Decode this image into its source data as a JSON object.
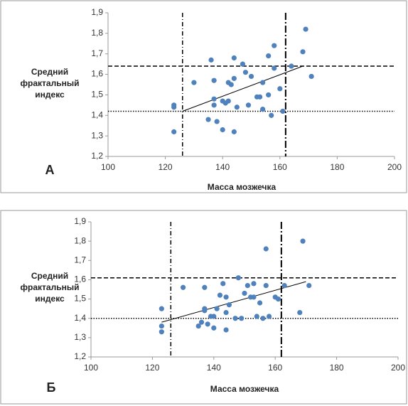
{
  "chart_data": [
    {
      "type": "scatter",
      "panel_label": "А",
      "x_label": "Масса мозжечка",
      "y_label": [
        "Средний",
        "фрактальный",
        "индекс"
      ],
      "xlim": [
        100,
        200
      ],
      "xticks": [
        100,
        120,
        140,
        160,
        180,
        200
      ],
      "ylim": [
        1.2,
        1.9
      ],
      "yticks": [
        {
          "value": 1.2,
          "label": "1,2"
        },
        {
          "value": 1.3,
          "label": "1,3"
        },
        {
          "value": 1.4,
          "label": "1,4"
        },
        {
          "value": 1.5,
          "label": "1,5"
        },
        {
          "value": 1.6,
          "label": "1,6"
        },
        {
          "value": 1.7,
          "label": "1,7"
        },
        {
          "value": 1.8,
          "label": "1,8"
        },
        {
          "value": 1.9,
          "label": "1,9"
        }
      ],
      "color": "#4f81bd",
      "x": [
        123,
        123,
        123,
        130,
        135,
        136,
        137,
        137,
        137,
        138,
        140,
        140,
        141,
        142,
        143,
        144,
        144,
        144,
        145,
        147,
        148,
        149,
        150,
        152,
        153,
        154,
        154,
        156,
        156,
        157,
        158,
        158,
        160,
        161,
        164,
        168,
        169,
        171,
        142
      ],
      "values": [
        1.45,
        1.44,
        1.32,
        1.56,
        1.38,
        1.67,
        1.48,
        1.57,
        1.45,
        1.37,
        1.47,
        1.33,
        1.46,
        1.56,
        1.55,
        1.68,
        1.58,
        1.32,
        1.44,
        1.65,
        1.61,
        1.45,
        1.59,
        1.49,
        1.49,
        1.56,
        1.43,
        1.69,
        1.5,
        1.4,
        1.74,
        1.63,
        1.53,
        1.42,
        1.64,
        1.71,
        1.82,
        1.59,
        1.47
      ],
      "vlines": [
        126,
        162
      ],
      "hlines": [
        1.64,
        1.42
      ],
      "trend": {
        "x": [
          126,
          168
        ],
        "y": [
          1.42,
          1.64
        ]
      }
    },
    {
      "type": "scatter",
      "panel_label": "Б",
      "x_label": "Масса мозжечка",
      "y_label": [
        "Средний",
        "фрактальный",
        "индекс"
      ],
      "xlim": [
        100,
        200
      ],
      "xticks": [
        100,
        120,
        140,
        160,
        180,
        200
      ],
      "ylim": [
        1.2,
        1.9
      ],
      "yticks": [
        {
          "value": 1.2,
          "label": "1,2"
        },
        {
          "value": 1.3,
          "label": "1,3"
        },
        {
          "value": 1.4,
          "label": "1,4"
        },
        {
          "value": 1.5,
          "label": "1,5"
        },
        {
          "value": 1.6,
          "label": "1,6"
        },
        {
          "value": 1.7,
          "label": "1,7"
        },
        {
          "value": 1.8,
          "label": "1,8"
        },
        {
          "value": 1.9,
          "label": "1,9"
        }
      ],
      "color": "#4f81bd",
      "x": [
        123,
        123,
        123,
        130,
        135,
        136,
        137,
        137,
        137,
        138,
        139,
        140,
        140,
        141,
        142,
        143,
        144,
        144,
        144,
        145,
        147,
        148,
        149,
        150,
        151,
        152,
        153,
        153,
        154,
        155,
        156,
        157,
        157,
        158,
        160,
        161,
        163,
        168,
        169,
        171
      ],
      "values": [
        1.45,
        1.36,
        1.33,
        1.56,
        1.36,
        1.38,
        1.56,
        1.45,
        1.44,
        1.37,
        1.41,
        1.41,
        1.35,
        1.45,
        1.52,
        1.58,
        1.51,
        1.43,
        1.34,
        1.47,
        1.4,
        1.61,
        1.4,
        1.53,
        1.57,
        1.51,
        1.51,
        1.58,
        1.41,
        1.48,
        1.4,
        1.76,
        1.57,
        1.41,
        1.51,
        1.5,
        1.57,
        1.43,
        1.8,
        1.57
      ],
      "vlines": [
        126,
        162
      ],
      "hlines": [
        1.61,
        1.4
      ],
      "trend": {
        "x": [
          123,
          170
        ],
        "y": [
          1.38,
          1.59
        ]
      }
    }
  ]
}
